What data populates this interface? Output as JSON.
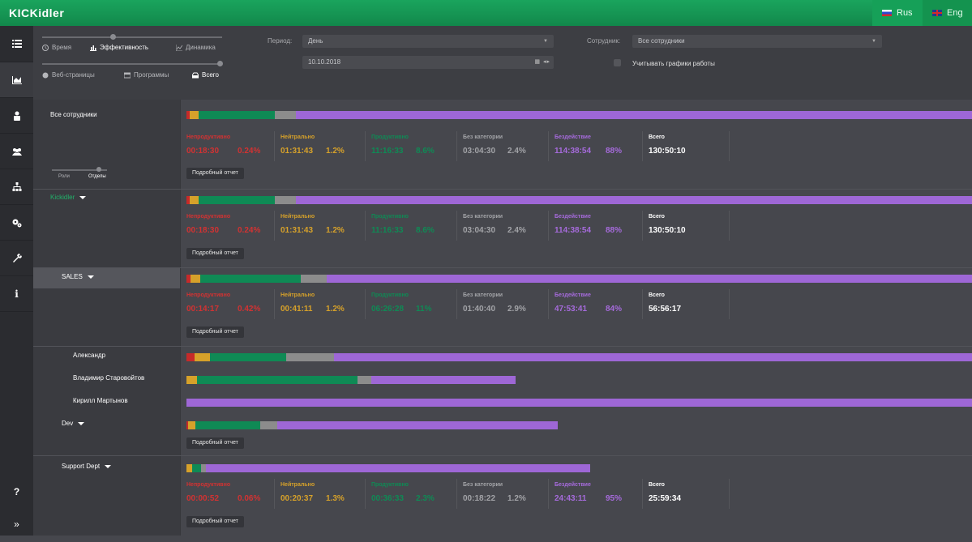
{
  "app": {
    "logo": "KICKidler"
  },
  "lang": {
    "rus": "Rus",
    "eng": "Eng"
  },
  "sidebar": {
    "icons": [
      "list-icon",
      "chart-icon",
      "user-lock-icon",
      "team-icon",
      "hierarchy-icon",
      "gears-icon",
      "wrench-icon",
      "info-icon",
      "help-icon",
      "expand-icon"
    ],
    "help": "?",
    "info": "i",
    "expand": "»"
  },
  "filters": {
    "mode_tabs": [
      {
        "label": "Время"
      },
      {
        "label": "Эффективность"
      },
      {
        "label": "Динамика"
      }
    ],
    "source_tabs": [
      {
        "label": "Веб-страницы"
      },
      {
        "label": "Программы"
      },
      {
        "label": "Всего"
      }
    ],
    "period_label": "Период:",
    "period_value": "День",
    "date_value": "10.10.2018",
    "employee_label": "Сотрудник:",
    "employee_value": "Все сотрудники",
    "schedule_label": "Учитывать графики работы"
  },
  "toggle": {
    "roles": "Роли",
    "departments": "Отделы"
  },
  "categories": {
    "unproductive": "Непродуктивно",
    "neutral": "Нейтрально",
    "productive": "Продуктивно",
    "uncategorized": "Без категории",
    "idle": "Бездействие",
    "total": "Всего"
  },
  "report_button": "Подробный отчет",
  "groups": [
    {
      "name": "Все сотрудники",
      "stats": {
        "unproductive": "00:18:30",
        "unproductive_pct": "0.24%",
        "neutral": "01:31:43",
        "neutral_pct": "1.2%",
        "productive": "11:16:33",
        "productive_pct": "8.6%",
        "uncategorized": "03:04:30",
        "uncategorized_pct": "2.4%",
        "idle": "114:38:54",
        "idle_pct": "88%",
        "total": "130:50:10"
      },
      "bar": [
        0.24,
        1.2,
        8.6,
        2.4,
        88
      ]
    },
    {
      "name": "Kickidler",
      "stats": {
        "unproductive": "00:18:30",
        "unproductive_pct": "0.24%",
        "neutral": "01:31:43",
        "neutral_pct": "1.2%",
        "productive": "11:16:33",
        "productive_pct": "8.6%",
        "uncategorized": "03:04:30",
        "uncategorized_pct": "2.4%",
        "idle": "114:38:54",
        "idle_pct": "88%",
        "total": "130:50:10"
      },
      "bar": [
        0.24,
        1.2,
        8.6,
        2.4,
        88
      ]
    },
    {
      "name": "SALES",
      "stats": {
        "unproductive": "00:14:17",
        "unproductive_pct": "0.42%",
        "neutral": "00:41:11",
        "neutral_pct": "1.2%",
        "productive": "06:26:28",
        "productive_pct": "11%",
        "uncategorized": "01:40:40",
        "uncategorized_pct": "2.9%",
        "idle": "47:53:41",
        "idle_pct": "84%",
        "total": "56:56:17"
      },
      "bar": [
        0.42,
        1.2,
        11,
        2.9,
        84
      ]
    },
    {
      "name": "Dev"
    },
    {
      "name": "Support Dept",
      "stats": {
        "unproductive": "00:00:52",
        "unproductive_pct": "0.06%",
        "neutral": "00:20:37",
        "neutral_pct": "1.3%",
        "productive": "00:36:33",
        "productive_pct": "2.3%",
        "uncategorized": "00:18:22",
        "uncategorized_pct": "1.2%",
        "idle": "24:43:11",
        "idle_pct": "95%",
        "total": "25:59:34"
      }
    }
  ],
  "employees": [
    {
      "name": "Александр"
    },
    {
      "name": "Владимир Старовойтов"
    },
    {
      "name": "Кирилл Мартынов"
    }
  ]
}
